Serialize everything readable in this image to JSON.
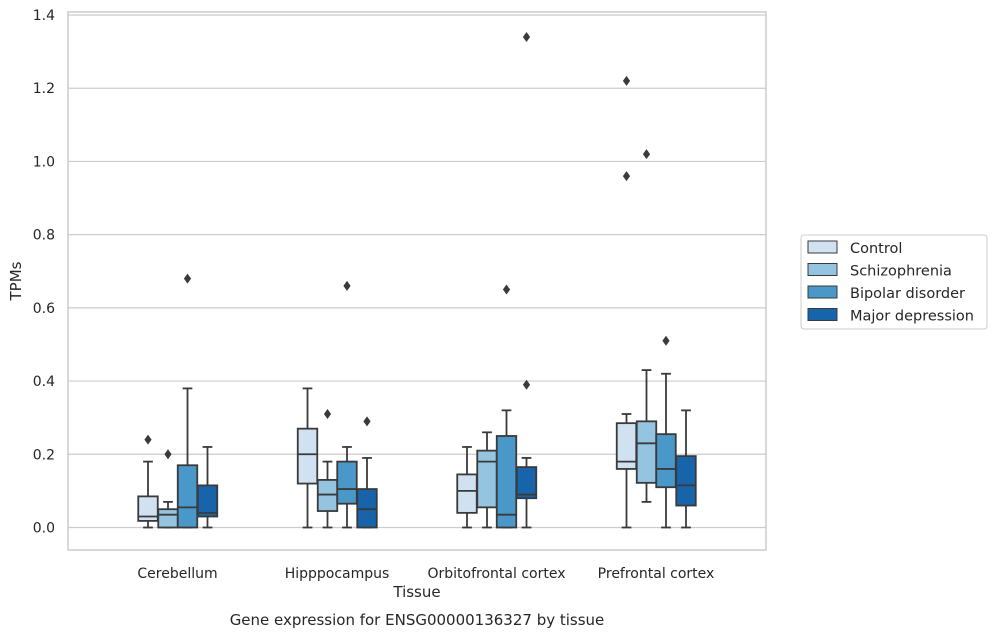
{
  "chart_data": {
    "type": "box",
    "xlabel": "Tissue",
    "ylabel": "TPMs",
    "caption": "Gene expression for ENSG00000136327 by tissue",
    "categories": [
      "Cerebellum",
      "Hipppocampus",
      "Orbitofrontal cortex",
      "Prefrontal cortex"
    ],
    "ylim": [
      -0.063,
      1.41
    ],
    "yticks": [
      0.0,
      0.2,
      0.4,
      0.6,
      0.8,
      1.0,
      1.2,
      1.4
    ],
    "ytick_labels": [
      "0.0",
      "0.2",
      "0.4",
      "0.6",
      "0.8",
      "1.0",
      "1.2",
      "1.4"
    ],
    "grid": "horizontal",
    "legend_position": "right",
    "series": [
      {
        "name": "Control",
        "color": "#d0e1f2",
        "boxes": [
          {
            "whislo": 0.0,
            "q1": 0.018,
            "med": 0.03,
            "q3": 0.085,
            "whishi": 0.18,
            "fliers": [
              0.24
            ]
          },
          {
            "whislo": 0.0,
            "q1": 0.12,
            "med": 0.2,
            "q3": 0.27,
            "whishi": 0.38,
            "fliers": []
          },
          {
            "whislo": 0.0,
            "q1": 0.04,
            "med": 0.1,
            "q3": 0.145,
            "whishi": 0.22,
            "fliers": []
          },
          {
            "whislo": 0.0,
            "q1": 0.16,
            "med": 0.18,
            "q3": 0.285,
            "whishi": 0.31,
            "fliers": [
              0.96,
              1.22
            ]
          }
        ]
      },
      {
        "name": "Schizophrenia",
        "color": "#94c4df",
        "boxes": [
          {
            "whislo": 0.0,
            "q1": 0.0,
            "med": 0.035,
            "q3": 0.05,
            "whishi": 0.07,
            "fliers": [
              0.2
            ]
          },
          {
            "whislo": 0.0,
            "q1": 0.045,
            "med": 0.09,
            "q3": 0.13,
            "whishi": 0.18,
            "fliers": [
              0.31
            ]
          },
          {
            "whislo": 0.0,
            "q1": 0.055,
            "med": 0.18,
            "q3": 0.21,
            "whishi": 0.26,
            "fliers": []
          },
          {
            "whislo": 0.07,
            "q1": 0.122,
            "med": 0.23,
            "q3": 0.29,
            "whishi": 0.43,
            "fliers": [
              1.02
            ]
          }
        ]
      },
      {
        "name": "Bipolar disorder",
        "color": "#4a98c9",
        "boxes": [
          {
            "whislo": 0.0,
            "q1": 0.0,
            "med": 0.055,
            "q3": 0.17,
            "whishi": 0.38,
            "fliers": [
              0.68
            ]
          },
          {
            "whislo": 0.0,
            "q1": 0.065,
            "med": 0.105,
            "q3": 0.18,
            "whishi": 0.22,
            "fliers": [
              0.66
            ]
          },
          {
            "whislo": 0.0,
            "q1": 0.0,
            "med": 0.035,
            "q3": 0.25,
            "whishi": 0.32,
            "fliers": [
              0.65
            ]
          },
          {
            "whislo": 0.0,
            "q1": 0.11,
            "med": 0.16,
            "q3": 0.255,
            "whishi": 0.42,
            "fliers": [
              0.51
            ]
          }
        ]
      },
      {
        "name": "Major depression",
        "color": "#1764ab",
        "boxes": [
          {
            "whislo": 0.0,
            "q1": 0.03,
            "med": 0.04,
            "q3": 0.115,
            "whishi": 0.22,
            "fliers": []
          },
          {
            "whislo": 0.0,
            "q1": 0.0,
            "med": 0.05,
            "q3": 0.105,
            "whishi": 0.19,
            "fliers": [
              0.29
            ]
          },
          {
            "whislo": 0.0,
            "q1": 0.08,
            "med": 0.09,
            "q3": 0.165,
            "whishi": 0.19,
            "fliers": [
              0.39,
              1.34
            ]
          },
          {
            "whislo": 0.0,
            "q1": 0.06,
            "med": 0.115,
            "q3": 0.195,
            "whishi": 0.32,
            "fliers": []
          }
        ]
      }
    ]
  }
}
